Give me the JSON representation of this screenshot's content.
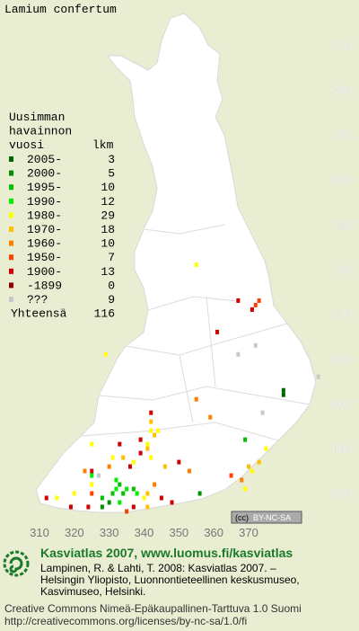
{
  "title": "Lamium confertum",
  "legend": {
    "heading": [
      "Uusimman",
      "havainnon",
      "vuosi"
    ],
    "count_heading": "lkm",
    "items": [
      {
        "label": "2005-",
        "count": 3,
        "color": "#006400"
      },
      {
        "label": "2000-",
        "count": 5,
        "color": "#009000"
      },
      {
        "label": "1995-",
        "count": 10,
        "color": "#00c000"
      },
      {
        "label": "1990-",
        "count": 12,
        "color": "#00f000"
      },
      {
        "label": "1980-",
        "count": 29,
        "color": "#ffff00"
      },
      {
        "label": "1970-",
        "count": 18,
        "color": "#ffc000"
      },
      {
        "label": "1960-",
        "count": 10,
        "color": "#ff8000"
      },
      {
        "label": "1950-",
        "count": 7,
        "color": "#ff4000"
      },
      {
        "label": "1900-",
        "count": 13,
        "color": "#d00000"
      },
      {
        "label": "-1899",
        "count": 0,
        "color": "#900000"
      },
      {
        "label": "???",
        "count": 9,
        "color": "#c8c8c8"
      }
    ],
    "total_label": "Yhteensä",
    "total": 116
  },
  "map": {
    "xticks": [
      310,
      320,
      330,
      340,
      350,
      360,
      370
    ],
    "yticks": [
      770,
      760,
      750,
      740,
      730,
      720,
      710,
      700,
      690,
      680,
      670
    ],
    "points": [
      [
        355,
        721,
        4
      ],
      [
        372,
        712,
        7
      ],
      [
        373,
        713,
        7
      ],
      [
        371,
        711,
        8
      ],
      [
        367,
        713,
        8
      ],
      [
        361,
        706,
        8
      ],
      [
        372,
        703,
        10
      ],
      [
        367,
        701,
        10
      ],
      [
        329,
        701,
        4
      ],
      [
        390,
        696,
        10
      ],
      [
        380,
        693,
        0
      ],
      [
        380,
        692,
        0
      ],
      [
        355,
        691,
        6
      ],
      [
        359,
        687,
        6
      ],
      [
        374,
        688,
        10
      ],
      [
        369,
        682,
        2
      ],
      [
        375,
        680,
        4
      ],
      [
        325,
        681,
        4
      ],
      [
        333,
        681,
        8
      ],
      [
        342,
        688,
        8
      ],
      [
        342,
        686,
        5
      ],
      [
        342,
        684,
        4
      ],
      [
        343,
        683,
        5
      ],
      [
        344,
        684,
        4
      ],
      [
        339,
        682,
        8
      ],
      [
        339,
        679,
        8
      ],
      [
        341,
        681,
        4
      ],
      [
        341,
        680,
        5
      ],
      [
        331,
        678,
        4
      ],
      [
        334,
        678,
        5
      ],
      [
        337,
        677,
        4
      ],
      [
        330,
        676,
        6
      ],
      [
        336,
        676,
        8
      ],
      [
        342,
        678,
        4
      ],
      [
        346,
        676,
        5
      ],
      [
        350,
        677,
        8
      ],
      [
        353,
        675,
        6
      ],
      [
        325,
        675,
        8
      ],
      [
        323,
        675,
        6
      ],
      [
        370,
        676,
        5
      ],
      [
        371,
        675,
        4
      ],
      [
        373,
        677,
        5
      ],
      [
        368,
        673,
        6
      ],
      [
        369,
        671,
        4
      ],
      [
        365,
        674,
        7
      ],
      [
        325,
        672,
        4
      ],
      [
        327,
        674,
        10
      ],
      [
        332,
        673,
        3
      ],
      [
        332,
        671,
        3
      ],
      [
        333,
        672,
        2
      ],
      [
        335,
        671,
        3
      ],
      [
        337,
        671,
        2
      ],
      [
        338,
        670,
        3
      ],
      [
        334,
        670,
        2
      ],
      [
        331,
        670,
        2
      ],
      [
        328,
        669,
        2
      ],
      [
        330,
        668,
        1
      ],
      [
        328,
        667,
        1
      ],
      [
        333,
        668,
        3
      ],
      [
        340,
        669,
        4
      ],
      [
        341,
        670,
        5
      ],
      [
        345,
        669,
        8
      ],
      [
        348,
        668,
        8
      ],
      [
        356,
        670,
        1
      ],
      [
        343,
        672,
        6
      ],
      [
        315,
        669,
        4
      ],
      [
        312,
        669,
        8
      ],
      [
        319,
        667,
        8
      ],
      [
        324,
        667,
        8
      ],
      [
        320,
        670,
        4
      ],
      [
        325,
        670,
        7
      ],
      [
        335,
        666,
        7
      ],
      [
        337,
        667,
        8
      ],
      [
        341,
        667,
        5
      ],
      [
        325,
        674,
        3
      ]
    ]
  },
  "badge": "BY-NC-SA",
  "credits": {
    "site": "Kasviatlas 2007, www.luomus.fi/kasviatlas",
    "citation": [
      "Lampinen, R. & Lahti, T. 2008: Kasviatlas 2007. –",
      "Helsingin Yliopisto, Luonnontieteellinen keskusmuseo,",
      "Kasvimuseo, Helsinki."
    ],
    "license": [
      "Creative Commons Nimeä-Epäkaupallinen-Tarttuva 1.0 Suomi",
      "http://creativecommons.org/licenses/by-nc-sa/1.0/fi"
    ]
  }
}
